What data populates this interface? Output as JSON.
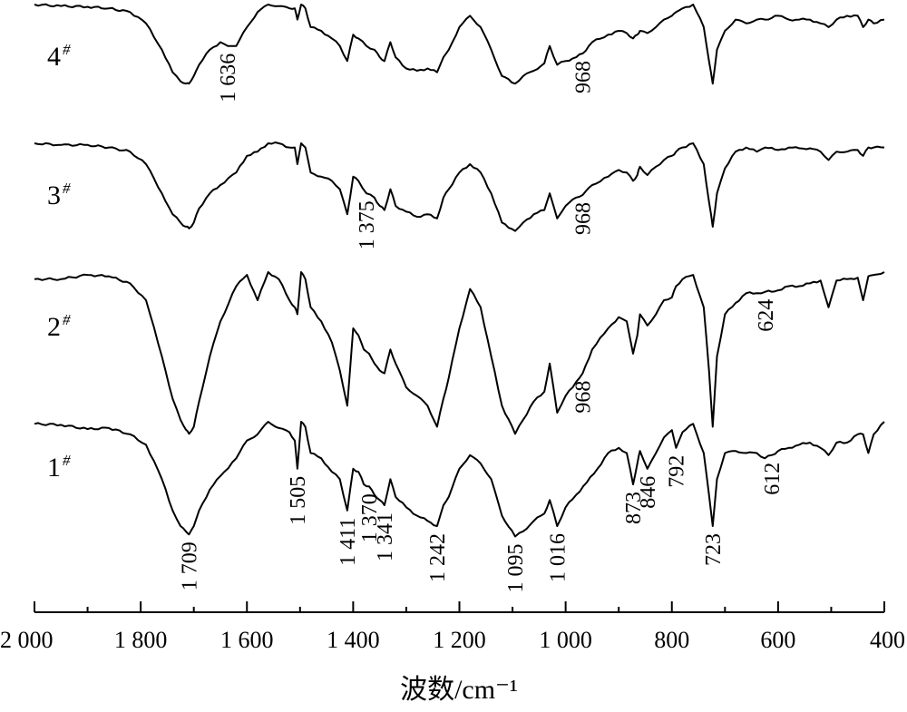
{
  "chart_data": {
    "type": "line",
    "xlabel": "波数/cm⁻¹",
    "ylabel": "",
    "xlim": [
      2000,
      400
    ],
    "x_reversed": true,
    "x_ticks": [
      2000,
      1800,
      1600,
      1400,
      1200,
      1000,
      800,
      600,
      400
    ],
    "x_tick_labels": [
      "2 000",
      "1 800",
      "1 600",
      "1 400",
      "1 200",
      "1 000",
      "800",
      "600",
      "400"
    ],
    "grid": false,
    "series": [
      {
        "name": "1",
        "sup": "#",
        "x": [
          2000,
          1950,
          1900,
          1860,
          1820,
          1790,
          1760,
          1740,
          1725,
          1715,
          1709,
          1700,
          1690,
          1670,
          1650,
          1620,
          1600,
          1580,
          1560,
          1540,
          1520,
          1510,
          1505,
          1498,
          1490,
          1480,
          1460,
          1440,
          1425,
          1411,
          1400,
          1390,
          1380,
          1370,
          1360,
          1350,
          1341,
          1330,
          1320,
          1300,
          1280,
          1260,
          1242,
          1230,
          1220,
          1200,
          1180,
          1160,
          1140,
          1120,
          1095,
          1080,
          1060,
          1040,
          1030,
          1016,
          1000,
          980,
          960,
          940,
          920,
          900,
          885,
          873,
          865,
          860,
          846,
          830,
          815,
          800,
          792,
          780,
          760,
          740,
          730,
          723,
          715,
          700,
          680,
          660,
          640,
          625,
          612,
          600,
          580,
          560,
          540,
          520,
          505,
          490,
          470,
          450,
          440,
          430,
          420,
          400
        ],
        "y": [
          0.02,
          0.03,
          0.07,
          0.06,
          0.12,
          0.22,
          0.55,
          0.85,
          1.0,
          1.05,
          1.08,
          1.0,
          0.85,
          0.65,
          0.52,
          0.35,
          0.18,
          0.12,
          0.0,
          0.06,
          0.1,
          0.18,
          0.45,
          0.0,
          0.05,
          0.3,
          0.35,
          0.48,
          0.55,
          0.85,
          0.45,
          0.48,
          0.6,
          0.62,
          0.7,
          0.75,
          0.8,
          0.55,
          0.72,
          0.82,
          0.9,
          0.95,
          1.0,
          0.8,
          0.72,
          0.45,
          0.32,
          0.4,
          0.55,
          0.9,
          1.1,
          1.05,
          0.95,
          0.88,
          0.75,
          1.0,
          0.82,
          0.7,
          0.58,
          0.45,
          0.3,
          0.25,
          0.3,
          0.6,
          0.4,
          0.28,
          0.45,
          0.3,
          0.15,
          0.08,
          0.25,
          0.1,
          0.02,
          0.3,
          0.7,
          1.0,
          0.55,
          0.3,
          0.28,
          0.3,
          0.3,
          0.35,
          0.32,
          0.28,
          0.25,
          0.22,
          0.2,
          0.25,
          0.32,
          0.2,
          0.2,
          0.12,
          0.12,
          0.3,
          0.12,
          0.0
        ],
        "annotations": [
          {
            "x": 1709,
            "label": "1 709"
          },
          {
            "x": 1505,
            "label": "1 505"
          },
          {
            "x": 1411,
            "label": "1 411"
          },
          {
            "x": 1370,
            "label": "1 370"
          },
          {
            "x": 1341,
            "label": "1 341"
          },
          {
            "x": 1242,
            "label": "1 242"
          },
          {
            "x": 1095,
            "label": "1 095"
          },
          {
            "x": 1016,
            "label": "1 016"
          },
          {
            "x": 873,
            "label": "873"
          },
          {
            "x": 846,
            "label": "846"
          },
          {
            "x": 792,
            "label": "792"
          },
          {
            "x": 723,
            "label": "723"
          },
          {
            "x": 612,
            "label": "612"
          }
        ]
      },
      {
        "name": "2",
        "sup": "#",
        "x": [
          2000,
          1950,
          1900,
          1860,
          1820,
          1790,
          1760,
          1740,
          1725,
          1715,
          1709,
          1700,
          1690,
          1670,
          1650,
          1620,
          1600,
          1580,
          1560,
          1540,
          1520,
          1510,
          1505,
          1498,
          1490,
          1480,
          1460,
          1440,
          1425,
          1411,
          1400,
          1390,
          1380,
          1370,
          1360,
          1350,
          1341,
          1330,
          1320,
          1300,
          1280,
          1260,
          1242,
          1230,
          1220,
          1200,
          1180,
          1160,
          1140,
          1120,
          1095,
          1080,
          1060,
          1040,
          1030,
          1016,
          1000,
          980,
          968,
          950,
          920,
          900,
          885,
          873,
          865,
          860,
          846,
          830,
          815,
          800,
          792,
          780,
          760,
          740,
          730,
          723,
          715,
          700,
          680,
          660,
          640,
          624,
          600,
          580,
          560,
          540,
          520,
          505,
          490,
          470,
          450,
          440,
          430,
          420,
          400
        ],
        "y": [
          0.05,
          0.05,
          0.02,
          0.03,
          0.08,
          0.2,
          0.6,
          0.9,
          1.05,
          1.12,
          1.15,
          1.1,
          0.92,
          0.6,
          0.35,
          0.1,
          0.02,
          0.2,
          0.0,
          0.05,
          0.2,
          0.25,
          0.3,
          0.0,
          0.05,
          0.25,
          0.35,
          0.5,
          0.7,
          0.95,
          0.4,
          0.45,
          0.55,
          0.58,
          0.65,
          0.7,
          0.72,
          0.55,
          0.65,
          0.82,
          0.88,
          0.95,
          1.1,
          0.9,
          0.75,
          0.4,
          0.12,
          0.25,
          0.6,
          0.95,
          1.15,
          1.05,
          0.92,
          0.85,
          0.65,
          1.0,
          0.88,
          0.78,
          0.72,
          0.55,
          0.4,
          0.32,
          0.35,
          0.58,
          0.45,
          0.3,
          0.38,
          0.3,
          0.2,
          0.18,
          0.1,
          0.05,
          0.02,
          0.25,
          0.7,
          1.1,
          0.6,
          0.3,
          0.22,
          0.15,
          0.15,
          0.14,
          0.13,
          0.1,
          0.1,
          0.08,
          0.06,
          0.25,
          0.06,
          0.05,
          0.04,
          0.2,
          0.03,
          0.02,
          0.0
        ],
        "annotations": [
          {
            "x": 968,
            "label": "968"
          },
          {
            "x": 624,
            "label": "624"
          }
        ]
      },
      {
        "name": "3",
        "sup": "#",
        "x": [
          2000,
          1950,
          1900,
          1860,
          1820,
          1790,
          1760,
          1740,
          1725,
          1715,
          1709,
          1700,
          1690,
          1670,
          1650,
          1620,
          1600,
          1580,
          1560,
          1540,
          1520,
          1510,
          1505,
          1498,
          1490,
          1480,
          1460,
          1440,
          1425,
          1411,
          1400,
          1390,
          1375,
          1360,
          1350,
          1341,
          1330,
          1320,
          1300,
          1280,
          1260,
          1242,
          1230,
          1220,
          1200,
          1180,
          1160,
          1140,
          1120,
          1095,
          1080,
          1060,
          1040,
          1030,
          1016,
          1000,
          980,
          968,
          950,
          920,
          900,
          885,
          873,
          865,
          860,
          846,
          830,
          815,
          800,
          792,
          780,
          760,
          740,
          730,
          723,
          715,
          700,
          680,
          660,
          640,
          624,
          600,
          580,
          560,
          540,
          520,
          505,
          490,
          470,
          450,
          440,
          430,
          420,
          400
        ],
        "y": [
          0.0,
          0.02,
          0.02,
          0.05,
          0.1,
          0.25,
          0.6,
          0.85,
          0.95,
          1.0,
          1.02,
          0.95,
          0.78,
          0.6,
          0.5,
          0.35,
          0.15,
          0.1,
          0.0,
          0.0,
          0.05,
          0.05,
          0.25,
          0.0,
          0.05,
          0.35,
          0.4,
          0.45,
          0.55,
          0.85,
          0.4,
          0.45,
          0.6,
          0.65,
          0.75,
          0.8,
          0.55,
          0.75,
          0.82,
          0.88,
          0.85,
          0.9,
          0.65,
          0.55,
          0.35,
          0.25,
          0.35,
          0.6,
          0.95,
          1.05,
          0.95,
          0.85,
          0.8,
          0.6,
          0.9,
          0.75,
          0.65,
          0.62,
          0.5,
          0.4,
          0.32,
          0.35,
          0.45,
          0.38,
          0.28,
          0.38,
          0.28,
          0.2,
          0.15,
          0.1,
          0.05,
          0.0,
          0.25,
          0.7,
          1.0,
          0.6,
          0.3,
          0.1,
          0.05,
          0.1,
          0.05,
          0.08,
          0.05,
          0.06,
          0.06,
          0.1,
          0.2,
          0.1,
          0.1,
          0.08,
          0.15,
          0.05,
          0.05,
          0.05
        ],
        "annotations": [
          {
            "x": 1375,
            "label": "1 375"
          },
          {
            "x": 968,
            "label": "968"
          }
        ]
      },
      {
        "name": "4",
        "sup": "#",
        "x": [
          2000,
          1950,
          1900,
          1860,
          1820,
          1790,
          1760,
          1740,
          1725,
          1715,
          1709,
          1700,
          1690,
          1670,
          1650,
          1636,
          1620,
          1600,
          1580,
          1560,
          1540,
          1520,
          1510,
          1505,
          1498,
          1490,
          1480,
          1460,
          1440,
          1425,
          1411,
          1400,
          1390,
          1375,
          1360,
          1350,
          1341,
          1330,
          1320,
          1300,
          1280,
          1260,
          1242,
          1230,
          1220,
          1200,
          1180,
          1160,
          1140,
          1120,
          1095,
          1080,
          1060,
          1040,
          1030,
          1016,
          1000,
          980,
          968,
          950,
          920,
          900,
          885,
          873,
          865,
          860,
          846,
          830,
          815,
          800,
          792,
          780,
          760,
          740,
          730,
          723,
          715,
          700,
          680,
          660,
          640,
          624,
          600,
          580,
          560,
          540,
          520,
          505,
          490,
          470,
          450,
          440,
          430,
          420,
          400
        ],
        "y": [
          0.0,
          0.02,
          0.03,
          0.05,
          0.1,
          0.25,
          0.6,
          0.9,
          1.02,
          1.05,
          1.05,
          0.95,
          0.8,
          0.6,
          0.5,
          0.55,
          0.55,
          0.3,
          0.1,
          0.0,
          0.02,
          0.05,
          0.05,
          0.2,
          0.0,
          0.05,
          0.3,
          0.35,
          0.45,
          0.55,
          0.75,
          0.4,
          0.45,
          0.55,
          0.6,
          0.7,
          0.75,
          0.5,
          0.7,
          0.85,
          0.88,
          0.85,
          0.9,
          0.7,
          0.6,
          0.3,
          0.15,
          0.3,
          0.6,
          0.95,
          1.05,
          0.95,
          0.88,
          0.78,
          0.55,
          0.8,
          0.75,
          0.7,
          0.65,
          0.5,
          0.4,
          0.35,
          0.38,
          0.45,
          0.4,
          0.35,
          0.38,
          0.3,
          0.2,
          0.15,
          0.1,
          0.05,
          0.0,
          0.3,
          0.75,
          1.05,
          0.6,
          0.35,
          0.2,
          0.25,
          0.2,
          0.2,
          0.15,
          0.2,
          0.2,
          0.2,
          0.25,
          0.3,
          0.2,
          0.15,
          0.15,
          0.3,
          0.2,
          0.25,
          0.2
        ],
        "annotations": [
          {
            "x": 1636,
            "label": "1 636"
          },
          {
            "x": 968,
            "label": "968"
          }
        ]
      }
    ]
  }
}
